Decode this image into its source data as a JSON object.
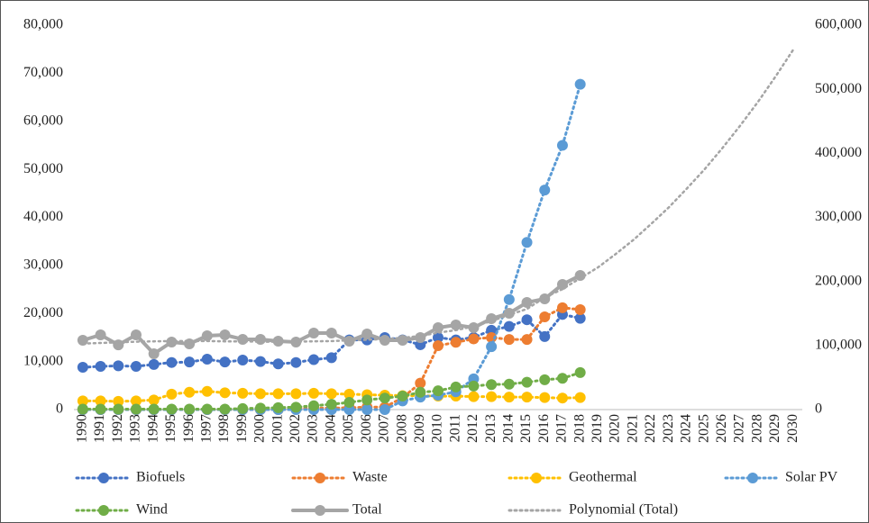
{
  "chart_data": {
    "type": "line",
    "categories": [
      "1990",
      "1991",
      "1992",
      "1993",
      "1994",
      "1995",
      "1996",
      "1997",
      "1998",
      "1999",
      "2000",
      "2001",
      "2002",
      "2003",
      "2004",
      "2005",
      "2006",
      "2007",
      "2008",
      "2009",
      "2010",
      "2011",
      "2012",
      "2013",
      "2014",
      "2015",
      "2016",
      "2017",
      "2018",
      "2019",
      "2020",
      "2021",
      "2022",
      "2023",
      "2024",
      "2025",
      "2026",
      "2027",
      "2028",
      "2029",
      "2030"
    ],
    "ylim": [
      0,
      80000
    ],
    "yticks": [
      0,
      {
        "value": 10000,
        "label": "10,000"
      },
      {
        "value": 20000,
        "label": "20,000"
      },
      {
        "value": 30000,
        "label": "30,000"
      },
      {
        "value": 40000,
        "label": "40,000"
      },
      {
        "value": 50000,
        "label": "50,000"
      },
      {
        "value": 60000,
        "label": "60,000"
      },
      {
        "value": 70000,
        "label": "70,000"
      },
      {
        "value": 80000,
        "label": "80,000"
      }
    ],
    "y2lim": [
      0,
      600000
    ],
    "y2ticks": [
      0,
      {
        "value": 100000,
        "label": "100,000"
      },
      {
        "value": 200000,
        "label": "200,000"
      },
      {
        "value": 300000,
        "label": "300,000"
      },
      {
        "value": 400000,
        "label": "400,000"
      },
      {
        "value": 500000,
        "label": "500,000"
      },
      {
        "value": 600000,
        "label": "600,000"
      }
    ],
    "grid": false,
    "legend": "bottom",
    "series": [
      {
        "name": "Biofuels",
        "color": "#4472c4",
        "style": "dotted",
        "marker": true,
        "values": [
          8800,
          9000,
          9100,
          9000,
          9400,
          9800,
          9900,
          10500,
          9900,
          10300,
          10000,
          9500,
          9800,
          10400,
          10800,
          14500,
          14500,
          15000,
          14500,
          13500,
          15000,
          14500,
          15000,
          16500,
          17300,
          18700,
          15200,
          19800,
          19000,
          null,
          null,
          null,
          null,
          null,
          null,
          null,
          null,
          null,
          null,
          null,
          null
        ]
      },
      {
        "name": "Waste",
        "color": "#ed7d31",
        "style": "dotted",
        "marker": true,
        "values": [
          0,
          0,
          0,
          0,
          0,
          0,
          0,
          0,
          0,
          0,
          0,
          0,
          200,
          300,
          300,
          400,
          500,
          500,
          2500,
          5500,
          13300,
          14000,
          14700,
          15000,
          14600,
          14600,
          19300,
          21200,
          20800,
          null,
          null,
          null,
          null,
          null,
          null,
          null,
          null,
          null,
          null,
          null,
          null
        ]
      },
      {
        "name": "Geothermal",
        "color": "#ffc000",
        "style": "dotted",
        "marker": true,
        "values": [
          1800,
          1800,
          1700,
          1800,
          2000,
          3200,
          3600,
          3800,
          3500,
          3400,
          3300,
          3300,
          3300,
          3400,
          3300,
          3200,
          3100,
          3000,
          2900,
          2900,
          2800,
          2800,
          2700,
          2700,
          2600,
          2600,
          2500,
          2400,
          2500,
          null,
          null,
          null,
          null,
          null,
          null,
          null,
          null,
          null,
          null,
          null,
          null
        ]
      },
      {
        "name": "Solar PV",
        "color": "#5b9bd5",
        "style": "dotted",
        "marker": true,
        "values": [
          0,
          0,
          0,
          0,
          0,
          0,
          0,
          0,
          0,
          0,
          0,
          0,
          0,
          0,
          0,
          0,
          0,
          0,
          1800,
          2600,
          3000,
          3700,
          6400,
          13100,
          22900,
          34800,
          45700,
          55000,
          67700,
          null,
          null,
          null,
          null,
          null,
          null,
          null,
          null,
          null,
          null,
          null,
          null
        ]
      },
      {
        "name": "Wind",
        "color": "#70ad47",
        "style": "dotted",
        "marker": true,
        "values": [
          100,
          100,
          100,
          100,
          100,
          100,
          100,
          100,
          100,
          200,
          300,
          400,
          500,
          800,
          1100,
          1500,
          2000,
          2400,
          2800,
          3600,
          3900,
          4700,
          4900,
          5200,
          5300,
          5700,
          6200,
          6500,
          7700,
          null,
          null,
          null,
          null,
          null,
          null,
          null,
          null,
          null,
          null,
          null,
          null
        ]
      },
      {
        "name": "Total",
        "color": "#a5a5a5",
        "style": "solid",
        "marker": true,
        "axis": "y2",
        "values": [
          108200,
          116600,
          101000,
          116600,
          87100,
          105400,
          102600,
          115200,
          116600,
          109600,
          109600,
          106800,
          105400,
          119400,
          119400,
          106800,
          118000,
          108200,
          108200,
          112400,
          127900,
          132100,
          127900,
          141900,
          150400,
          167200,
          172800,
          195300,
          209400,
          null,
          null,
          null,
          null,
          null,
          null,
          null,
          null,
          null,
          null,
          null,
          null
        ]
      },
      {
        "name": "Polynomial (Total)",
        "color": "#a5a5a5",
        "style": "dotted",
        "marker": false,
        "axis": "y2",
        "values": [
          103000,
          104000,
          105000,
          106000,
          106500,
          107000,
          107000,
          107000,
          106500,
          106500,
          106000,
          106000,
          106000,
          106500,
          107000,
          108000,
          109000,
          110000,
          112000,
          115000,
          120000,
          124000,
          130000,
          138000,
          148000,
          157000,
          175000,
          188000,
          205000,
          222000,
          243000,
          265000,
          290000,
          316000,
          345000,
          375000,
          408000,
          443000,
          480000,
          520000,
          562000
        ]
      }
    ]
  }
}
